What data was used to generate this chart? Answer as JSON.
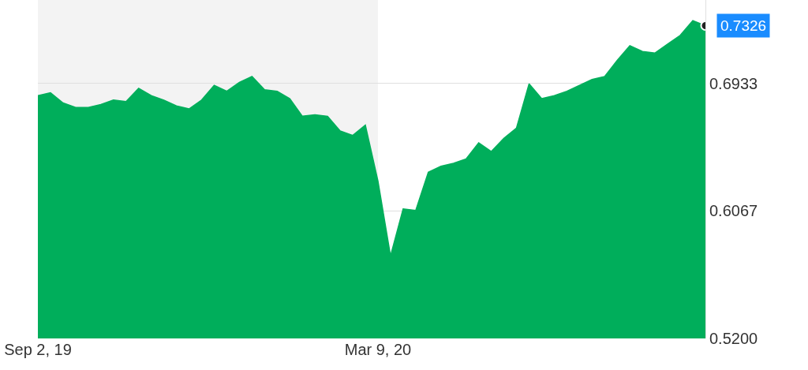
{
  "chart_data": {
    "type": "area",
    "x": [
      "2019-09-02",
      "2019-09-09",
      "2019-09-16",
      "2019-09-23",
      "2019-09-30",
      "2019-10-07",
      "2019-10-14",
      "2019-10-21",
      "2019-10-28",
      "2019-11-04",
      "2019-11-11",
      "2019-11-18",
      "2019-11-25",
      "2019-12-02",
      "2019-12-09",
      "2019-12-16",
      "2019-12-23",
      "2019-12-30",
      "2020-01-06",
      "2020-01-13",
      "2020-01-20",
      "2020-01-27",
      "2020-02-03",
      "2020-02-10",
      "2020-02-17",
      "2020-02-24",
      "2020-03-02",
      "2020-03-09",
      "2020-03-16",
      "2020-03-23",
      "2020-03-30",
      "2020-04-06",
      "2020-04-13",
      "2020-04-20",
      "2020-04-27",
      "2020-05-04",
      "2020-05-11",
      "2020-05-18",
      "2020-05-25",
      "2020-06-01",
      "2020-06-08",
      "2020-06-15",
      "2020-06-22",
      "2020-06-29",
      "2020-07-06",
      "2020-07-13",
      "2020-07-20",
      "2020-07-27",
      "2020-08-03",
      "2020-08-10",
      "2020-08-17",
      "2020-08-24",
      "2020-08-31",
      "2020-09-07"
    ],
    "series": [
      {
        "color": "#00ae5b",
        "values": [
          0.685,
          0.687,
          0.68,
          0.677,
          0.677,
          0.679,
          0.682,
          0.681,
          0.69,
          0.685,
          0.682,
          0.678,
          0.676,
          0.682,
          0.692,
          0.688,
          0.694,
          0.698,
          0.689,
          0.688,
          0.683,
          0.671,
          0.672,
          0.671,
          0.661,
          0.658,
          0.665,
          0.627,
          0.576,
          0.608,
          0.607,
          0.633,
          0.637,
          0.639,
          0.642,
          0.653,
          0.647,
          0.656,
          0.663,
          0.693,
          0.683,
          0.685,
          0.688,
          0.692,
          0.696,
          0.698,
          0.709,
          0.719,
          0.715,
          0.714,
          0.72,
          0.726,
          0.736,
          0.7326
        ]
      }
    ],
    "xlim": [
      "2019-09-02",
      "2020-09-07"
    ],
    "xticks": [
      {
        "value": "2019-09-02",
        "label": "Sep 2, 19"
      },
      {
        "value": "2020-03-09",
        "label": "Mar 9, 20"
      }
    ],
    "ylim": [
      0.52,
      0.75
    ],
    "yticks": [
      {
        "value": 0.52,
        "label": "0.5200"
      },
      {
        "value": 0.6067,
        "label": "0.6067"
      },
      {
        "value": 0.6933,
        "label": "0.6933"
      }
    ],
    "bands": [
      {
        "axis": "x",
        "from": "2019-09-02",
        "to": "2020-03-09",
        "color": "#f3f3f3"
      }
    ],
    "annotations": [
      {
        "text": "0.7326",
        "x": "2020-09-07",
        "y": 0.7326
      }
    ],
    "grid": "y"
  }
}
